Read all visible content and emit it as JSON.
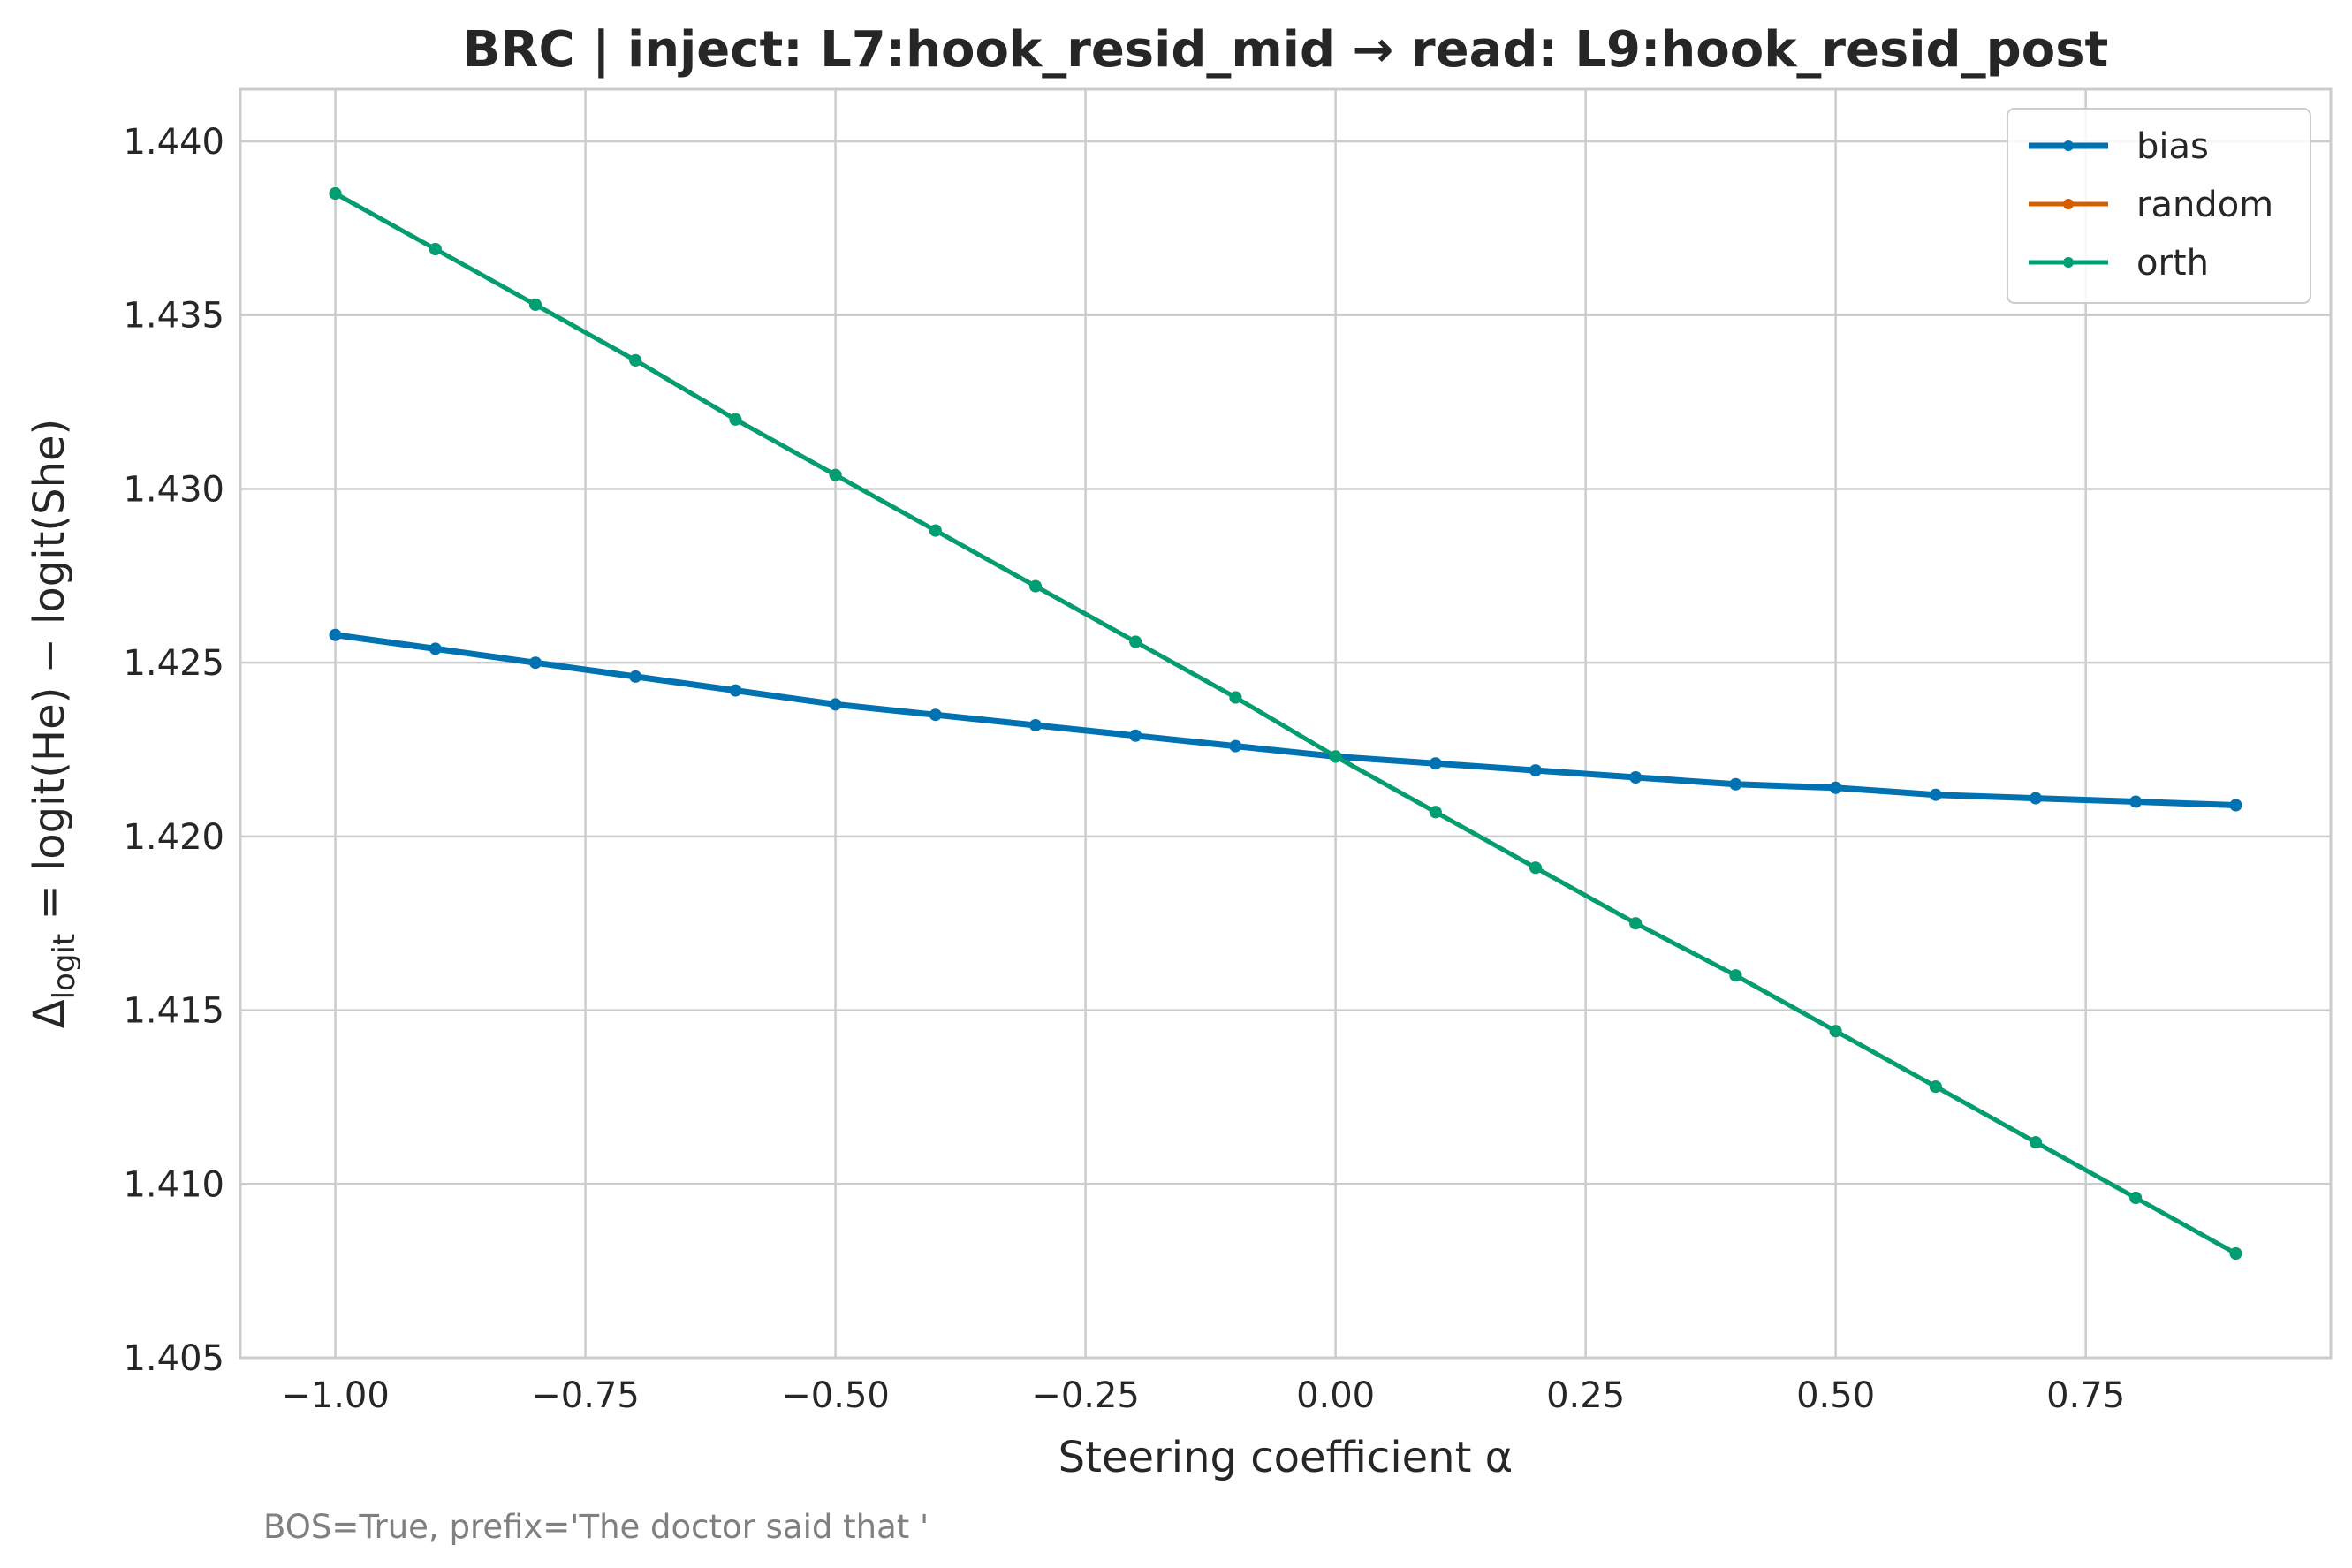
{
  "chart_data": {
    "type": "line",
    "title": "BRC | inject: L7:hook_resid_mid → read: L9:hook_resid_post",
    "xlabel": "Steering coefficient α",
    "ylabel_main": "Δ",
    "ylabel_sub": "logit",
    "ylabel_rest": " = logit(He) − logit(She)",
    "caption": "BOS=True, prefix='The doctor said that '",
    "xlim": [
      -1.0,
      0.9
    ],
    "ylim": [
      1.405,
      1.4415
    ],
    "xticks": [
      -1.0,
      -0.75,
      -0.5,
      -0.25,
      0.0,
      0.25,
      0.5,
      0.75
    ],
    "xtick_labels": [
      "−1.00",
      "−0.75",
      "−0.50",
      "−0.25",
      "0.00",
      "0.25",
      "0.50",
      "0.75"
    ],
    "yticks": [
      1.405,
      1.41,
      1.415,
      1.42,
      1.425,
      1.43,
      1.435,
      1.44
    ],
    "ytick_labels": [
      "1.405",
      "1.410",
      "1.415",
      "1.420",
      "1.425",
      "1.430",
      "1.435",
      "1.440"
    ],
    "grid": true,
    "legend_position": "top-right",
    "x": [
      -1.0,
      -0.9,
      -0.8,
      -0.7,
      -0.6,
      -0.5,
      -0.4,
      -0.3,
      -0.2,
      -0.1,
      0.0,
      0.1,
      0.2,
      0.3,
      0.4,
      0.5,
      0.6,
      0.7,
      0.8,
      0.9
    ],
    "series": [
      {
        "name": "bias",
        "color": "#0072b2",
        "values": [
          1.4258,
          1.4254,
          1.425,
          1.4246,
          1.4242,
          1.4238,
          1.4235,
          1.4232,
          1.4229,
          1.4226,
          1.4223,
          1.4221,
          1.4219,
          1.4217,
          1.4215,
          1.4214,
          1.4212,
          1.4211,
          1.421,
          1.4209
        ]
      },
      {
        "name": "random",
        "color": "#d55e00",
        "values": [
          1.4385,
          1.4369,
          1.4353,
          1.4337,
          1.432,
          1.4304,
          1.4288,
          1.4272,
          1.4256,
          1.424,
          1.4223,
          1.4207,
          1.4191,
          1.4175,
          1.416,
          1.4144,
          1.4128,
          1.4112,
          1.4096,
          1.408
        ]
      },
      {
        "name": "orth",
        "color": "#009e73",
        "values": [
          1.4385,
          1.4369,
          1.4353,
          1.4337,
          1.432,
          1.4304,
          1.4288,
          1.4272,
          1.4256,
          1.424,
          1.4223,
          1.4207,
          1.4191,
          1.4175,
          1.416,
          1.4144,
          1.4128,
          1.4112,
          1.4096,
          1.408
        ]
      }
    ]
  }
}
